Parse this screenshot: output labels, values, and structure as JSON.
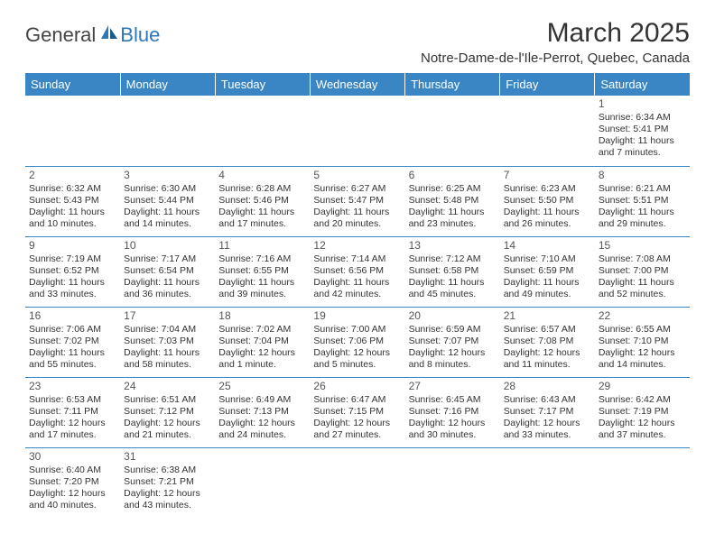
{
  "logo": {
    "text_a": "General",
    "text_b": "Blue"
  },
  "title": "March 2025",
  "location": "Notre-Dame-de-l'Ile-Perrot, Quebec, Canada",
  "colors": {
    "header_bg": "#3a86c5",
    "header_text": "#ffffff",
    "rule": "#3a86c5",
    "logo_blue": "#2f78b5",
    "logo_grey": "#444"
  },
  "day_headers": [
    "Sunday",
    "Monday",
    "Tuesday",
    "Wednesday",
    "Thursday",
    "Friday",
    "Saturday"
  ],
  "weeks": [
    [
      null,
      null,
      null,
      null,
      null,
      null,
      {
        "n": "1",
        "sr": "Sunrise: 6:34 AM",
        "ss": "Sunset: 5:41 PM",
        "dl": "Daylight: 11 hours and 7 minutes."
      }
    ],
    [
      {
        "n": "2",
        "sr": "Sunrise: 6:32 AM",
        "ss": "Sunset: 5:43 PM",
        "dl": "Daylight: 11 hours and 10 minutes."
      },
      {
        "n": "3",
        "sr": "Sunrise: 6:30 AM",
        "ss": "Sunset: 5:44 PM",
        "dl": "Daylight: 11 hours and 14 minutes."
      },
      {
        "n": "4",
        "sr": "Sunrise: 6:28 AM",
        "ss": "Sunset: 5:46 PM",
        "dl": "Daylight: 11 hours and 17 minutes."
      },
      {
        "n": "5",
        "sr": "Sunrise: 6:27 AM",
        "ss": "Sunset: 5:47 PM",
        "dl": "Daylight: 11 hours and 20 minutes."
      },
      {
        "n": "6",
        "sr": "Sunrise: 6:25 AM",
        "ss": "Sunset: 5:48 PM",
        "dl": "Daylight: 11 hours and 23 minutes."
      },
      {
        "n": "7",
        "sr": "Sunrise: 6:23 AM",
        "ss": "Sunset: 5:50 PM",
        "dl": "Daylight: 11 hours and 26 minutes."
      },
      {
        "n": "8",
        "sr": "Sunrise: 6:21 AM",
        "ss": "Sunset: 5:51 PM",
        "dl": "Daylight: 11 hours and 29 minutes."
      }
    ],
    [
      {
        "n": "9",
        "sr": "Sunrise: 7:19 AM",
        "ss": "Sunset: 6:52 PM",
        "dl": "Daylight: 11 hours and 33 minutes."
      },
      {
        "n": "10",
        "sr": "Sunrise: 7:17 AM",
        "ss": "Sunset: 6:54 PM",
        "dl": "Daylight: 11 hours and 36 minutes."
      },
      {
        "n": "11",
        "sr": "Sunrise: 7:16 AM",
        "ss": "Sunset: 6:55 PM",
        "dl": "Daylight: 11 hours and 39 minutes."
      },
      {
        "n": "12",
        "sr": "Sunrise: 7:14 AM",
        "ss": "Sunset: 6:56 PM",
        "dl": "Daylight: 11 hours and 42 minutes."
      },
      {
        "n": "13",
        "sr": "Sunrise: 7:12 AM",
        "ss": "Sunset: 6:58 PM",
        "dl": "Daylight: 11 hours and 45 minutes."
      },
      {
        "n": "14",
        "sr": "Sunrise: 7:10 AM",
        "ss": "Sunset: 6:59 PM",
        "dl": "Daylight: 11 hours and 49 minutes."
      },
      {
        "n": "15",
        "sr": "Sunrise: 7:08 AM",
        "ss": "Sunset: 7:00 PM",
        "dl": "Daylight: 11 hours and 52 minutes."
      }
    ],
    [
      {
        "n": "16",
        "sr": "Sunrise: 7:06 AM",
        "ss": "Sunset: 7:02 PM",
        "dl": "Daylight: 11 hours and 55 minutes."
      },
      {
        "n": "17",
        "sr": "Sunrise: 7:04 AM",
        "ss": "Sunset: 7:03 PM",
        "dl": "Daylight: 11 hours and 58 minutes."
      },
      {
        "n": "18",
        "sr": "Sunrise: 7:02 AM",
        "ss": "Sunset: 7:04 PM",
        "dl": "Daylight: 12 hours and 1 minute."
      },
      {
        "n": "19",
        "sr": "Sunrise: 7:00 AM",
        "ss": "Sunset: 7:06 PM",
        "dl": "Daylight: 12 hours and 5 minutes."
      },
      {
        "n": "20",
        "sr": "Sunrise: 6:59 AM",
        "ss": "Sunset: 7:07 PM",
        "dl": "Daylight: 12 hours and 8 minutes."
      },
      {
        "n": "21",
        "sr": "Sunrise: 6:57 AM",
        "ss": "Sunset: 7:08 PM",
        "dl": "Daylight: 12 hours and 11 minutes."
      },
      {
        "n": "22",
        "sr": "Sunrise: 6:55 AM",
        "ss": "Sunset: 7:10 PM",
        "dl": "Daylight: 12 hours and 14 minutes."
      }
    ],
    [
      {
        "n": "23",
        "sr": "Sunrise: 6:53 AM",
        "ss": "Sunset: 7:11 PM",
        "dl": "Daylight: 12 hours and 17 minutes."
      },
      {
        "n": "24",
        "sr": "Sunrise: 6:51 AM",
        "ss": "Sunset: 7:12 PM",
        "dl": "Daylight: 12 hours and 21 minutes."
      },
      {
        "n": "25",
        "sr": "Sunrise: 6:49 AM",
        "ss": "Sunset: 7:13 PM",
        "dl": "Daylight: 12 hours and 24 minutes."
      },
      {
        "n": "26",
        "sr": "Sunrise: 6:47 AM",
        "ss": "Sunset: 7:15 PM",
        "dl": "Daylight: 12 hours and 27 minutes."
      },
      {
        "n": "27",
        "sr": "Sunrise: 6:45 AM",
        "ss": "Sunset: 7:16 PM",
        "dl": "Daylight: 12 hours and 30 minutes."
      },
      {
        "n": "28",
        "sr": "Sunrise: 6:43 AM",
        "ss": "Sunset: 7:17 PM",
        "dl": "Daylight: 12 hours and 33 minutes."
      },
      {
        "n": "29",
        "sr": "Sunrise: 6:42 AM",
        "ss": "Sunset: 7:19 PM",
        "dl": "Daylight: 12 hours and 37 minutes."
      }
    ],
    [
      {
        "n": "30",
        "sr": "Sunrise: 6:40 AM",
        "ss": "Sunset: 7:20 PM",
        "dl": "Daylight: 12 hours and 40 minutes."
      },
      {
        "n": "31",
        "sr": "Sunrise: 6:38 AM",
        "ss": "Sunset: 7:21 PM",
        "dl": "Daylight: 12 hours and 43 minutes."
      },
      null,
      null,
      null,
      null,
      null
    ]
  ]
}
